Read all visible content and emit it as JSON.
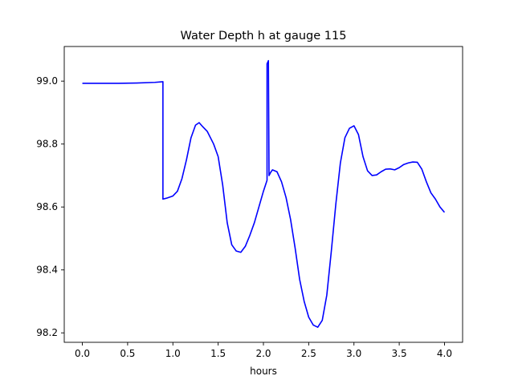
{
  "chart_data": {
    "type": "line",
    "title": "Water Depth h at gauge 115",
    "xlabel": "hours",
    "ylabel": "",
    "xlim": [
      -0.2,
      4.2
    ],
    "ylim": [
      98.17,
      99.11
    ],
    "x_ticks": [
      0.0,
      0.5,
      1.0,
      1.5,
      2.0,
      2.5,
      3.0,
      3.5,
      4.0
    ],
    "x_tick_labels": [
      "0.0",
      "0.5",
      "1.0",
      "1.5",
      "2.0",
      "2.5",
      "3.0",
      "3.5",
      "4.0"
    ],
    "y_ticks": [
      98.2,
      98.4,
      98.6,
      98.8,
      99.0
    ],
    "y_tick_labels": [
      "98.2",
      "98.4",
      "98.6",
      "98.8",
      "99.0"
    ],
    "grid": false,
    "legend": "none",
    "series": [
      {
        "color": "#0000ff",
        "points": [
          [
            0.0,
            98.993
          ],
          [
            0.2,
            98.993
          ],
          [
            0.4,
            98.993
          ],
          [
            0.6,
            98.994
          ],
          [
            0.8,
            98.996
          ],
          [
            0.89,
            98.998
          ],
          [
            0.89,
            98.625
          ],
          [
            0.93,
            98.628
          ],
          [
            1.0,
            98.635
          ],
          [
            1.05,
            98.65
          ],
          [
            1.1,
            98.69
          ],
          [
            1.15,
            98.75
          ],
          [
            1.2,
            98.82
          ],
          [
            1.25,
            98.86
          ],
          [
            1.29,
            98.868
          ],
          [
            1.33,
            98.855
          ],
          [
            1.38,
            98.84
          ],
          [
            1.45,
            98.8
          ],
          [
            1.5,
            98.76
          ],
          [
            1.55,
            98.67
          ],
          [
            1.6,
            98.55
          ],
          [
            1.65,
            98.48
          ],
          [
            1.7,
            98.46
          ],
          [
            1.75,
            98.456
          ],
          [
            1.8,
            98.475
          ],
          [
            1.85,
            98.51
          ],
          [
            1.9,
            98.55
          ],
          [
            1.95,
            98.6
          ],
          [
            2.0,
            98.65
          ],
          [
            2.04,
            98.685
          ],
          [
            2.04,
            99.055
          ],
          [
            2.055,
            99.065
          ],
          [
            2.062,
            98.7
          ],
          [
            2.08,
            98.71
          ],
          [
            2.1,
            98.718
          ],
          [
            2.15,
            98.712
          ],
          [
            2.2,
            98.68
          ],
          [
            2.25,
            98.63
          ],
          [
            2.3,
            98.56
          ],
          [
            2.35,
            98.47
          ],
          [
            2.4,
            98.37
          ],
          [
            2.45,
            98.3
          ],
          [
            2.5,
            98.25
          ],
          [
            2.55,
            98.225
          ],
          [
            2.6,
            98.218
          ],
          [
            2.65,
            98.24
          ],
          [
            2.7,
            98.32
          ],
          [
            2.75,
            98.46
          ],
          [
            2.8,
            98.61
          ],
          [
            2.85,
            98.74
          ],
          [
            2.9,
            98.82
          ],
          [
            2.95,
            98.85
          ],
          [
            3.0,
            98.858
          ],
          [
            3.05,
            98.83
          ],
          [
            3.1,
            98.76
          ],
          [
            3.15,
            98.715
          ],
          [
            3.2,
            98.7
          ],
          [
            3.25,
            98.702
          ],
          [
            3.3,
            98.712
          ],
          [
            3.35,
            98.72
          ],
          [
            3.4,
            98.721
          ],
          [
            3.45,
            98.718
          ],
          [
            3.5,
            98.725
          ],
          [
            3.55,
            98.735
          ],
          [
            3.6,
            98.74
          ],
          [
            3.65,
            98.743
          ],
          [
            3.7,
            98.742
          ],
          [
            3.75,
            98.72
          ],
          [
            3.8,
            98.68
          ],
          [
            3.85,
            98.645
          ],
          [
            3.9,
            98.625
          ],
          [
            3.95,
            98.6
          ],
          [
            4.0,
            98.583
          ]
        ]
      }
    ]
  }
}
